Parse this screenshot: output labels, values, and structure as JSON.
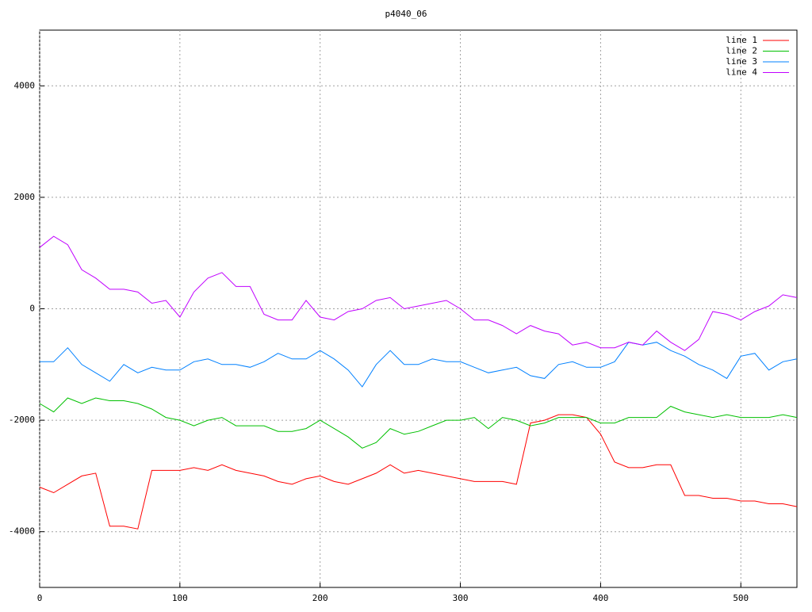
{
  "chart_data": {
    "type": "line",
    "title": "p4040_06",
    "x": [
      0,
      10,
      20,
      30,
      40,
      50,
      60,
      70,
      80,
      90,
      100,
      110,
      120,
      130,
      140,
      150,
      160,
      170,
      180,
      190,
      200,
      210,
      220,
      230,
      240,
      250,
      260,
      270,
      280,
      290,
      300,
      310,
      320,
      330,
      340,
      350,
      360,
      370,
      380,
      390,
      400,
      410,
      420,
      430,
      440,
      450,
      460,
      470,
      480,
      490,
      500,
      510,
      520,
      530,
      540
    ],
    "series": [
      {
        "name": "line 1",
        "color": "#ff0000",
        "values": [
          -3200,
          -3300,
          -3150,
          -3000,
          -2950,
          -3900,
          -3900,
          -3950,
          -2900,
          -2900,
          -2900,
          -2850,
          -2900,
          -2800,
          -2900,
          -2950,
          -3000,
          -3100,
          -3150,
          -3050,
          -3000,
          -3100,
          -3150,
          -3050,
          -2950,
          -2800,
          -2950,
          -2900,
          -2950,
          -3000,
          -3050,
          -3100,
          -3100,
          -3100,
          -3150,
          -2050,
          -2000,
          -1900,
          -1900,
          -1950,
          -2250,
          -2750,
          -2850,
          -2850,
          -2800,
          -2800,
          -3350,
          -3350,
          -3400,
          -3400,
          -3450,
          -3450,
          -3500,
          -3500,
          -3550
        ]
      },
      {
        "name": "line 2",
        "color": "#00c000",
        "values": [
          -1700,
          -1850,
          -1600,
          -1700,
          -1600,
          -1650,
          -1650,
          -1700,
          -1800,
          -1950,
          -2000,
          -2100,
          -2000,
          -1950,
          -2100,
          -2100,
          -2100,
          -2200,
          -2200,
          -2150,
          -2000,
          -2150,
          -2300,
          -2500,
          -2400,
          -2150,
          -2250,
          -2200,
          -2100,
          -2000,
          -2000,
          -1950,
          -2150,
          -1950,
          -2000,
          -2100,
          -2050,
          -1950,
          -1950,
          -1950,
          -2050,
          -2050,
          -1950,
          -1950,
          -1950,
          -1750,
          -1850,
          -1900,
          -1950,
          -1900,
          -1950,
          -1950,
          -1950,
          -1900,
          -1950
        ]
      },
      {
        "name": "line 3",
        "color": "#0080ff",
        "values": [
          -950,
          -950,
          -700,
          -1000,
          -1150,
          -1300,
          -1000,
          -1150,
          -1050,
          -1100,
          -1100,
          -950,
          -900,
          -1000,
          -1000,
          -1050,
          -950,
          -800,
          -900,
          -900,
          -750,
          -900,
          -1100,
          -1400,
          -1000,
          -750,
          -1000,
          -1000,
          -900,
          -950,
          -950,
          -1050,
          -1150,
          -1100,
          -1050,
          -1200,
          -1250,
          -1000,
          -950,
          -1050,
          -1050,
          -950,
          -600,
          -650,
          -600,
          -750,
          -850,
          -1000,
          -1100,
          -1250,
          -850,
          -800,
          -1100,
          -950,
          -900
        ]
      },
      {
        "name": "line 4",
        "color": "#c000ff",
        "values": [
          1100,
          1300,
          1150,
          700,
          550,
          350,
          350,
          300,
          100,
          150,
          -150,
          300,
          550,
          650,
          400,
          400,
          -100,
          -200,
          -200,
          150,
          -150,
          -200,
          -50,
          0,
          150,
          200,
          0,
          50,
          100,
          150,
          0,
          -200,
          -200,
          -300,
          -450,
          -300,
          -400,
          -450,
          -650,
          -600,
          -700,
          -700,
          -600,
          -650,
          -400,
          -600,
          -750,
          -550,
          -50,
          -100,
          -200,
          -50,
          50,
          250,
          200
        ]
      }
    ],
    "xlim": [
      0,
      540
    ],
    "xticks": [
      0,
      100,
      200,
      300,
      400,
      500
    ],
    "ylim": [
      -5000,
      5000
    ],
    "yticks": [
      -4000,
      -2000,
      0,
      2000,
      4000
    ],
    "grid": true,
    "legend": "top-right"
  }
}
